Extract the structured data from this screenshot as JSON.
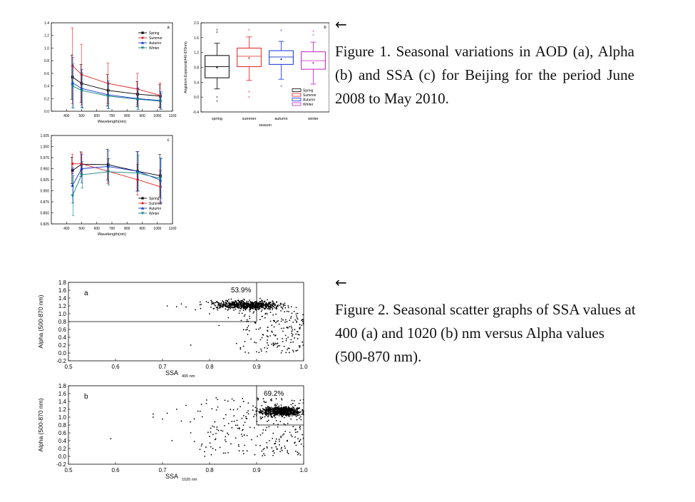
{
  "figure1": {
    "arrow": "←",
    "caption": "Figure 1. Seasonal variations in AOD (a), Alpha (b) and SSA (c) for Beijing for the period June 2008 to May 2010."
  },
  "figure2": {
    "arrow": "←",
    "caption": "Figure 2. Seasonal scatter graphs of SSA values at 400 (a) and 1020 (b) nm versus Alpha values (500‑870 nm)."
  },
  "colors": {
    "spring": "#000000",
    "summer": "#e02020",
    "autumn": "#1030d0",
    "winter": "#108080",
    "winter_box": "#c020c0"
  },
  "chart_data": [
    {
      "id": "1a",
      "type": "line",
      "panel_label": "a",
      "xlabel": "Wavelength(nm)",
      "ylabel": "AOD",
      "xlim": [
        300,
        1100
      ],
      "ylim": [
        0.0,
        1.4
      ],
      "xticks": [
        400,
        500,
        600,
        700,
        800,
        900,
        1000,
        1100
      ],
      "yticks": [
        0.0,
        0.2,
        0.4,
        0.6,
        0.8,
        1.0,
        1.2,
        1.4
      ],
      "x": [
        440,
        500,
        675,
        870,
        1020
      ],
      "series": [
        {
          "name": "Spring",
          "key": "spring",
          "marker": "square",
          "values": [
            0.54,
            0.44,
            0.33,
            0.27,
            0.24
          ],
          "err": [
            0.35,
            0.3,
            0.25,
            0.2,
            0.18
          ]
        },
        {
          "name": "Summer",
          "key": "summer",
          "marker": "circle",
          "values": [
            0.72,
            0.58,
            0.44,
            0.35,
            0.25
          ],
          "err": [
            0.6,
            0.48,
            0.32,
            0.25,
            0.2
          ]
        },
        {
          "name": "Autumn",
          "key": "autumn",
          "marker": "triangle-up",
          "values": [
            0.45,
            0.36,
            0.26,
            0.2,
            0.17
          ],
          "err": [
            0.4,
            0.3,
            0.22,
            0.17,
            0.14
          ]
        },
        {
          "name": "Winter",
          "key": "winter",
          "marker": "triangle-down",
          "values": [
            0.4,
            0.33,
            0.24,
            0.19,
            0.16
          ],
          "err": [
            0.35,
            0.28,
            0.2,
            0.16,
            0.13
          ]
        }
      ],
      "legend_position": "top-right"
    },
    {
      "id": "1b",
      "type": "box",
      "panel_label": "b",
      "xlabel": "season",
      "ylabel": "Angstrom Exponent(440-870nm)",
      "ylim": [
        -0.4,
        2.0
      ],
      "yticks": [
        -0.4,
        -0.2,
        0.0,
        0.2,
        0.4,
        0.6,
        0.8,
        1.0,
        1.2,
        1.4,
        1.6,
        1.8,
        2.0
      ],
      "categories": [
        "spring",
        "summer",
        "autumn",
        "winter"
      ],
      "series": [
        {
          "name": "Spring",
          "key": "spring",
          "q1": 0.52,
          "median": 0.82,
          "q3": 1.12,
          "mean": 0.8,
          "whisker_low": 0.22,
          "whisker_high": 1.45,
          "outliers": [
            1.75,
            1.82,
            -0.1,
            0.0
          ]
        },
        {
          "name": "Summer",
          "key": "summer",
          "q1": 0.82,
          "median": 1.1,
          "q3": 1.32,
          "mean": 1.05,
          "whisker_low": 0.45,
          "whisker_high": 1.62,
          "outliers": [
            1.82,
            0.15,
            0.0
          ]
        },
        {
          "name": "Autumn",
          "key": "autumn",
          "q1": 0.88,
          "median": 1.08,
          "q3": 1.25,
          "mean": 1.02,
          "whisker_low": 0.48,
          "whisker_high": 1.5,
          "outliers": [
            1.8,
            0.3
          ]
        },
        {
          "name": "Winter",
          "key": "winter_box",
          "q1": 0.75,
          "median": 0.98,
          "q3": 1.22,
          "mean": 0.92,
          "whisker_low": 0.35,
          "whisker_high": 1.48,
          "outliers": [
            1.78,
            1.68,
            0.1,
            0.0
          ]
        }
      ],
      "legend": [
        "Spring",
        "Summer",
        "Autumn",
        "Winter"
      ],
      "legend_position": "bottom-right"
    },
    {
      "id": "1c",
      "type": "line",
      "panel_label": "c",
      "xlabel": "Wavelength(nm)",
      "ylabel": "SSA",
      "xlim": [
        300,
        1100
      ],
      "ylim": [
        0.825,
        1.025
      ],
      "xticks": [
        400,
        500,
        600,
        700,
        800,
        900,
        1000,
        1100
      ],
      "yticks": [
        0.825,
        0.85,
        0.875,
        0.9,
        0.925,
        0.95,
        0.975,
        1.0,
        1.025
      ],
      "x": [
        440,
        500,
        675,
        870,
        1020
      ],
      "series": [
        {
          "name": "Spring",
          "key": "spring",
          "marker": "square",
          "values": [
            0.946,
            0.96,
            0.959,
            0.944,
            0.934
          ],
          "err": [
            0.03,
            0.028,
            0.035,
            0.045,
            0.048
          ]
        },
        {
          "name": "Summer",
          "key": "summer",
          "marker": "circle",
          "values": [
            0.961,
            0.961,
            0.944,
            0.925,
            0.909
          ],
          "err": [
            0.022,
            0.024,
            0.028,
            0.035,
            0.038
          ]
        },
        {
          "name": "Autumn",
          "key": "autumn",
          "marker": "triangle-up",
          "values": [
            0.912,
            0.95,
            0.955,
            0.944,
            0.924
          ],
          "err": [
            0.04,
            0.032,
            0.035,
            0.045,
            0.05
          ]
        },
        {
          "name": "Winter",
          "key": "winter",
          "marker": "triangle-down",
          "values": [
            0.889,
            0.936,
            0.943,
            0.94,
            0.928
          ],
          "err": [
            0.045,
            0.03,
            0.03,
            0.04,
            0.045
          ]
        }
      ],
      "legend_position": "bottom-right"
    },
    {
      "id": "2a",
      "type": "scatter",
      "panel_label": "a",
      "xlabel": "SSA",
      "xlabel_sub": "400 nm",
      "ylabel": "Alpha (500-870 nm)",
      "xlim": [
        0.5,
        1.0
      ],
      "ylim": [
        -0.2,
        1.8
      ],
      "xticks": [
        0.5,
        0.6,
        0.7,
        0.8,
        0.9,
        1.0
      ],
      "yticks": [
        -0.2,
        0.0,
        0.2,
        0.4,
        0.6,
        0.8,
        1.0,
        1.2,
        1.4,
        1.6,
        1.8
      ],
      "threshold_x": 0.9,
      "threshold_y": 0.8,
      "annotation": "53.9%",
      "region": "left",
      "cluster": {
        "center": [
          0.88,
          1.22
        ],
        "spread": [
          0.055,
          0.16
        ],
        "count": 650
      },
      "scatter_spread": {
        "x_range": [
          0.85,
          1.0
        ],
        "y_range": [
          0.0,
          1.1
        ],
        "count": 180
      },
      "stragglers": [
        [
          0.71,
          1.2
        ],
        [
          0.73,
          1.18
        ],
        [
          0.74,
          1.25
        ],
        [
          0.75,
          1.17
        ],
        [
          0.76,
          0.2
        ],
        [
          0.77,
          1.1
        ],
        [
          0.78,
          1.3
        ],
        [
          0.8,
          1.0
        ],
        [
          0.82,
          0.7
        ],
        [
          0.84,
          0.9
        ]
      ]
    },
    {
      "id": "2b",
      "type": "scatter",
      "panel_label": "b",
      "xlabel": "SSA",
      "xlabel_sub": "1020 nm",
      "ylabel": "Alpha (500-870 nm)",
      "xlim": [
        0.5,
        1.0
      ],
      "ylim": [
        -0.2,
        1.8
      ],
      "xticks": [
        0.5,
        0.6,
        0.7,
        0.8,
        0.9,
        1.0
      ],
      "yticks": [
        -0.2,
        0.0,
        0.2,
        0.4,
        0.6,
        0.8,
        1.0,
        1.2,
        1.4,
        1.6,
        1.8
      ],
      "threshold_x": 0.9,
      "threshold_y": 0.8,
      "annotation": "69.2%",
      "region": "right",
      "cluster": {
        "center": [
          0.95,
          1.15
        ],
        "spread": [
          0.03,
          0.16
        ],
        "count": 700
      },
      "scatter_spread": {
        "x_range": [
          0.75,
          1.0
        ],
        "y_range": [
          0.0,
          1.5
        ],
        "count": 260
      },
      "stragglers": [
        [
          0.59,
          0.45
        ],
        [
          0.68,
          1.0
        ],
        [
          0.68,
          1.08
        ],
        [
          0.7,
          0.95
        ],
        [
          0.71,
          1.1
        ],
        [
          0.72,
          0.4
        ],
        [
          0.73,
          1.2
        ],
        [
          0.74,
          0.9
        ],
        [
          0.75,
          1.3
        ],
        [
          0.76,
          0.6
        ],
        [
          0.78,
          1.15
        ],
        [
          0.79,
          0.0
        ]
      ]
    }
  ]
}
